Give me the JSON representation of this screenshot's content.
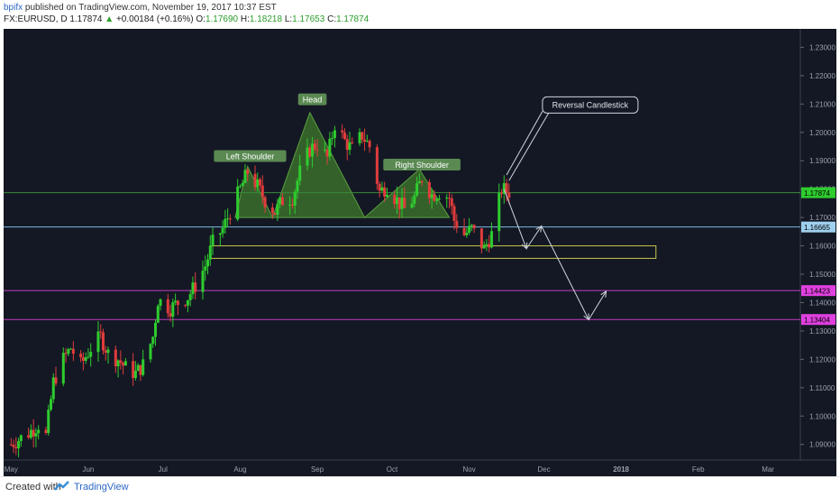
{
  "header": {
    "user": "bpifx",
    "published": "published on TradingView.com, November 19, 2017 10:37 EST",
    "symbol": "FX:EURUSD, D",
    "last": "1.17874",
    "change_arrow": "▲",
    "change": "+0.00184 (+0.16%)",
    "o_label": "O:",
    "o_val": "1.17690",
    "h_label": "H:",
    "h_val": "1.18218",
    "l_label": "L:",
    "l_val": "1.17653",
    "c_label": "C:",
    "c_val": "1.17874"
  },
  "footer": {
    "created": "Created with",
    "brand": "TradingView"
  },
  "colors": {
    "background": "#141824",
    "up": "#2ecc2e",
    "down": "#e03c3c",
    "pattern_fill": "#3f7a2c",
    "support_zone": "#c8c84a",
    "purple_line": "#c03cc0",
    "blue_line": "#7ab8e0",
    "label_green_bg": "#5a8a52"
  },
  "chart_data": {
    "type": "candlestick",
    "symbol": "FX:EURUSD",
    "interval": "D",
    "ylim": [
      1.0845,
      1.2365
    ],
    "y_ticks": [
      "1.23000",
      "1.22000",
      "1.21000",
      "1.20000",
      "1.19000",
      "1.18000",
      "1.17000",
      "1.16000",
      "1.15000",
      "1.14000",
      "1.13000",
      "1.12000",
      "1.11000",
      "1.10000",
      "1.09000"
    ],
    "x_ticks": [
      "May",
      "Jun",
      "Jul",
      "Aug",
      "Sep",
      "Oct",
      "Nov",
      "Dec",
      "2018",
      "Feb",
      "Mar"
    ],
    "x_tick_dates": [
      "2017-05-01",
      "2017-06-01",
      "2017-07-01",
      "2017-08-01",
      "2017-09-01",
      "2017-10-01",
      "2017-11-01",
      "2017-12-01",
      "2018-01-01",
      "2018-02-01",
      "2018-03-01"
    ],
    "close_path": [
      [
        "2017-05-01",
        1.09
      ],
      [
        "2017-05-08",
        1.094
      ],
      [
        "2017-05-12",
        1.097
      ],
      [
        "2017-05-15",
        1.093
      ],
      [
        "2017-05-18",
        1.112
      ],
      [
        "2017-05-22",
        1.12
      ],
      [
        "2017-05-25",
        1.124
      ],
      [
        "2017-05-29",
        1.118
      ],
      [
        "2017-06-02",
        1.124
      ],
      [
        "2017-06-06",
        1.128
      ],
      [
        "2017-06-09",
        1.122
      ],
      [
        "2017-06-13",
        1.12
      ],
      [
        "2017-06-16",
        1.117
      ],
      [
        "2017-06-20",
        1.115
      ],
      [
        "2017-06-23",
        1.118
      ],
      [
        "2017-06-27",
        1.128
      ],
      [
        "2017-06-29",
        1.141
      ],
      [
        "2017-07-04",
        1.138
      ],
      [
        "2017-07-07",
        1.14
      ],
      [
        "2017-07-11",
        1.142
      ],
      [
        "2017-07-14",
        1.146
      ],
      [
        "2017-07-18",
        1.153
      ],
      [
        "2017-07-21",
        1.161
      ],
      [
        "2017-07-25",
        1.166
      ],
      [
        "2017-07-28",
        1.172
      ],
      [
        "2017-08-01",
        1.18
      ],
      [
        "2017-08-04",
        1.186
      ],
      [
        "2017-08-08",
        1.181
      ],
      [
        "2017-08-11",
        1.176
      ],
      [
        "2017-08-15",
        1.172
      ],
      [
        "2017-08-18",
        1.176
      ],
      [
        "2017-08-22",
        1.177
      ],
      [
        "2017-08-25",
        1.186
      ],
      [
        "2017-08-29",
        1.194
      ],
      [
        "2017-09-01",
        1.196
      ],
      [
        "2017-09-05",
        1.191
      ],
      [
        "2017-09-08",
        1.203
      ],
      [
        "2017-09-12",
        1.197
      ],
      [
        "2017-09-15",
        1.194
      ],
      [
        "2017-09-19",
        1.199
      ],
      [
        "2017-09-22",
        1.195
      ],
      [
        "2017-09-26",
        1.179
      ],
      [
        "2017-09-29",
        1.181
      ],
      [
        "2017-10-03",
        1.176
      ],
      [
        "2017-10-06",
        1.173
      ],
      [
        "2017-10-10",
        1.177
      ],
      [
        "2017-10-13",
        1.184
      ],
      [
        "2017-10-17",
        1.178
      ],
      [
        "2017-10-20",
        1.179
      ],
      [
        "2017-10-24",
        1.177
      ],
      [
        "2017-10-26",
        1.169
      ],
      [
        "2017-10-30",
        1.164
      ],
      [
        "2017-11-02",
        1.166
      ],
      [
        "2017-11-07",
        1.159
      ],
      [
        "2017-11-10",
        1.164
      ],
      [
        "2017-11-14",
        1.18
      ],
      [
        "2017-11-17",
        1.179
      ]
    ],
    "annotations": {
      "left_shoulder": "Left Shoulder",
      "head": "Head",
      "right_shoulder": "Right Shoulder",
      "reversal_candlestick": "Reversal Candlestick"
    },
    "horizontal_lines": [
      {
        "price": 1.17874,
        "label": "1.17874",
        "style": "last price"
      },
      {
        "price": 1.16665,
        "label": "1.16665",
        "style": "neckline"
      },
      {
        "price": 1.14423,
        "label": "1.14423",
        "style": "support"
      },
      {
        "price": 1.13404,
        "label": "1.13404",
        "style": "support"
      }
    ],
    "neckline_price": 1.17,
    "support_zone": {
      "top": 1.16,
      "bottom": 1.1556,
      "from": "2017-07-20",
      "to": "2018-01-15"
    },
    "head_and_shoulders_points": [
      [
        "2017-07-30",
        1.17
      ],
      [
        "2017-08-04",
        1.188
      ],
      [
        "2017-08-14",
        1.17
      ],
      [
        "2017-08-29",
        1.207
      ],
      [
        "2017-09-20",
        1.17
      ],
      [
        "2017-10-12",
        1.187
      ],
      [
        "2017-10-24",
        1.17
      ]
    ],
    "projection_path": [
      [
        "2017-11-15",
        1.18
      ],
      [
        "2017-11-24",
        1.159
      ],
      [
        "2017-11-30",
        1.167
      ],
      [
        "2017-12-19",
        1.134
      ],
      [
        "2017-12-26",
        1.144
      ]
    ]
  }
}
